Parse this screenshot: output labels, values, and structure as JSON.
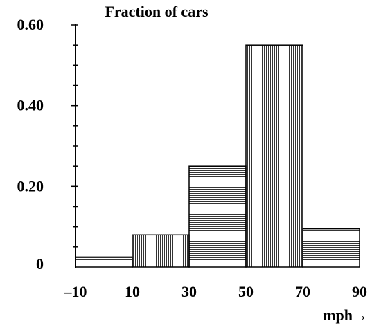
{
  "chart_data": {
    "type": "bar",
    "title": "",
    "ylabel": "Fraction of cars",
    "xlabel": "mph→",
    "bins": [
      {
        "from": -10,
        "to": 10,
        "value": 0.025,
        "fill": "horizontal-hatch"
      },
      {
        "from": 10,
        "to": 30,
        "value": 0.08,
        "fill": "vertical-hatch"
      },
      {
        "from": 30,
        "to": 50,
        "value": 0.25,
        "fill": "horizontal-hatch"
      },
      {
        "from": 50,
        "to": 70,
        "value": 0.55,
        "fill": "vertical-hatch"
      },
      {
        "from": 70,
        "to": 90,
        "value": 0.095,
        "fill": "horizontal-hatch"
      }
    ],
    "x_ticks": [
      "–10",
      "10",
      "30",
      "50",
      "70",
      "90"
    ],
    "y_ticks": [
      "0",
      "0.20",
      "0.40",
      "0.60"
    ],
    "xlim": [
      -10,
      90
    ],
    "ylim": [
      0,
      0.6
    ],
    "grid": false,
    "legend": "none",
    "colors": {
      "bar_edge": "#000000",
      "hatch": "#000000",
      "background": "#ffffff"
    }
  }
}
